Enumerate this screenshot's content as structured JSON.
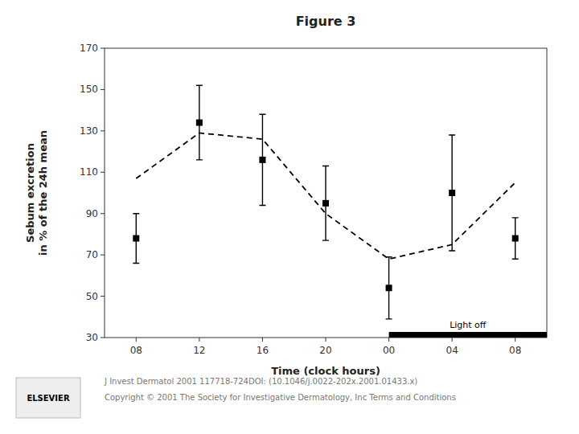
{
  "chart_data": {
    "type": "line",
    "title": "Figure 3",
    "x_label": "Time (clock hours)",
    "y_label": "Sebum excretion\nin % of the 24h mean",
    "categories": [
      "08",
      "12",
      "16",
      "20",
      "00",
      "04",
      "08"
    ],
    "series": [
      {
        "color": "#000000",
        "line_style": "dashed",
        "marker": "none",
        "values": [
          107,
          129,
          126,
          90,
          68,
          75,
          105
        ]
      },
      {
        "color": "#000000",
        "line_style": "none",
        "marker": "square",
        "values": [
          78,
          134,
          116,
          95,
          54,
          100,
          78
        ],
        "errors": [
          12,
          18,
          22,
          18,
          15,
          28,
          10
        ]
      }
    ],
    "ylim": [
      30,
      170
    ],
    "yticks": [
      30,
      50,
      70,
      90,
      110,
      130,
      150,
      170
    ],
    "grid": false,
    "annotations": [
      {
        "text": "Light off",
        "from": "00"
      },
      {
        "text": "J Invest Dermatol 2001 117718-724DOI: (10.1046/j.0022-202x.2001.01433.x)"
      },
      {
        "text": "Copyright © 2001 The Society for Investigative Dermatology, Inc Terms and Conditions"
      },
      {
        "text": "ELSEVIER"
      }
    ]
  }
}
